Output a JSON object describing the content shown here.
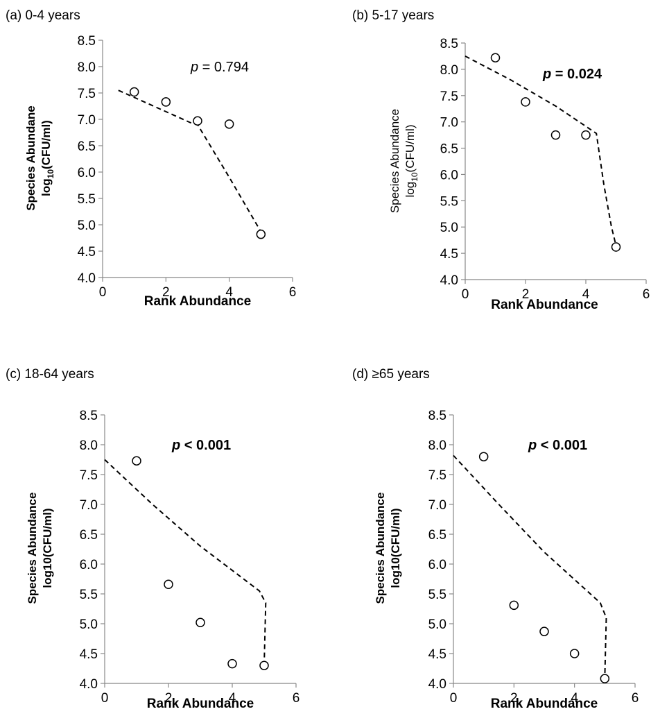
{
  "chart_data": [
    {
      "type": "scatter",
      "title": "(a) 0-4 years",
      "annotation_prefix": "p",
      "annotation_value": " = 0.794",
      "annotation_bold": false,
      "xlabel": "Rank Abundance",
      "xlabel_bold": true,
      "ylabel_line1": "Species Abundane",
      "ylabel_line2_base": "log",
      "ylabel_line2_sub": "10",
      "ylabel_line2_rest": "(CFU/ml)",
      "ylabel_bold": true,
      "xlim": [
        0,
        6
      ],
      "ylim": [
        4.0,
        8.5
      ],
      "xticks": [
        "0",
        "2",
        "4",
        "6"
      ],
      "yticks": [
        "4.0",
        "4.5",
        "5.0",
        "5.5",
        "6.0",
        "6.5",
        "7.0",
        "7.5",
        "8.0",
        "8.5"
      ],
      "points": {
        "x": [
          1,
          2,
          3,
          4,
          5
        ],
        "y": [
          7.52,
          7.33,
          6.97,
          6.91,
          4.82
        ]
      },
      "fit_line": {
        "x": [
          0.5,
          2.8,
          3.0,
          4.0,
          5.0
        ],
        "y": [
          7.55,
          6.93,
          6.9,
          5.9,
          4.87
        ]
      }
    },
    {
      "type": "scatter",
      "title": "(b) 5-17 years",
      "annotation_prefix": "p",
      "annotation_value": " = 0.024",
      "annotation_bold": true,
      "xlabel": "Rank Abundance",
      "xlabel_bold": true,
      "ylabel_line1": "Species Abundance",
      "ylabel_line2_base": "log",
      "ylabel_line2_sub": "10",
      "ylabel_line2_rest": "(CFU/ml)",
      "ylabel_bold": false,
      "xlim": [
        0,
        6
      ],
      "ylim": [
        4.0,
        8.5
      ],
      "xticks": [
        "0",
        "2",
        "4",
        "6"
      ],
      "yticks": [
        "4.0",
        "4.5",
        "5.0",
        "5.5",
        "6.0",
        "6.5",
        "7.0",
        "7.5",
        "8.0",
        "8.5"
      ],
      "points": {
        "x": [
          1,
          2,
          3,
          4,
          5
        ],
        "y": [
          8.22,
          7.38,
          6.75,
          6.75,
          4.62
        ]
      },
      "fit_line": {
        "x": [
          0.0,
          1.5,
          3.0,
          4.35,
          4.6,
          4.85,
          5.0
        ],
        "y": [
          8.25,
          7.8,
          7.3,
          6.78,
          5.8,
          5.0,
          4.65
        ]
      }
    },
    {
      "type": "scatter",
      "title": "(c) 18-64 years",
      "annotation_prefix": "p",
      "annotation_value": " < 0.001",
      "annotation_bold": true,
      "xlabel": "Rank Abundance",
      "xlabel_bold": true,
      "ylabel_line1": "Species Abundance",
      "ylabel_line2_base": "log10(CFU/ml)",
      "ylabel_line2_sub": "",
      "ylabel_line2_rest": "",
      "ylabel_bold": true,
      "xlim": [
        0,
        6
      ],
      "ylim": [
        4.0,
        8.5
      ],
      "xticks": [
        "0",
        "2",
        "4",
        "6"
      ],
      "yticks": [
        "4.0",
        "4.5",
        "5.0",
        "5.5",
        "6.0",
        "6.5",
        "7.0",
        "7.5",
        "8.0",
        "8.5"
      ],
      "points": {
        "x": [
          1,
          2,
          3,
          4,
          5
        ],
        "y": [
          7.73,
          5.66,
          5.02,
          4.33,
          4.3
        ]
      },
      "fit_line": {
        "x": [
          0.0,
          1.5,
          3.0,
          4.85,
          5.05,
          5.0
        ],
        "y": [
          7.75,
          7.0,
          6.3,
          5.55,
          5.35,
          4.3
        ]
      }
    },
    {
      "type": "scatter",
      "title": "(d) ≥65 years",
      "annotation_prefix": "p",
      "annotation_value": " < 0.001",
      "annotation_bold": true,
      "xlabel": "Rank Abundance",
      "xlabel_bold": true,
      "ylabel_line1": "Species Abundance",
      "ylabel_line2_base": "log10(CFU/ml)",
      "ylabel_line2_sub": "",
      "ylabel_line2_rest": "",
      "ylabel_bold": true,
      "xlim": [
        0,
        6
      ],
      "ylim": [
        4.0,
        8.5
      ],
      "xticks": [
        "0",
        "2",
        "4",
        "6"
      ],
      "yticks": [
        "4.0",
        "4.5",
        "5.0",
        "5.5",
        "6.0",
        "6.5",
        "7.0",
        "7.5",
        "8.0",
        "8.5"
      ],
      "points": {
        "x": [
          1,
          2,
          3,
          4,
          5
        ],
        "y": [
          7.8,
          5.31,
          4.87,
          4.5,
          4.08
        ]
      },
      "fit_line": {
        "x": [
          0.0,
          1.5,
          3.0,
          4.85,
          5.05,
          5.0
        ],
        "y": [
          7.82,
          7.0,
          6.2,
          5.35,
          5.1,
          4.08
        ]
      }
    }
  ]
}
